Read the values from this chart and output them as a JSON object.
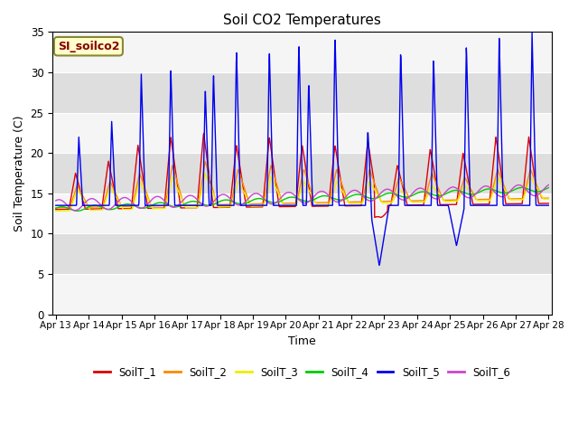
{
  "title": "Soil CO2 Temperatures",
  "xlabel": "Time",
  "ylabel": "Soil Temperature (C)",
  "ylim": [
    0,
    35
  ],
  "annotation": "SI_soilco2",
  "bg_color": "#e8e8e8",
  "series_colors": {
    "SoilT_1": "#dd0000",
    "SoilT_2": "#ff8800",
    "SoilT_3": "#eeee00",
    "SoilT_4": "#00cc00",
    "SoilT_5": "#0000ee",
    "SoilT_6": "#cc44cc"
  },
  "x_tick_labels": [
    "Apr 13",
    "Apr 14",
    "Apr 15",
    "Apr 16",
    "Apr 17",
    "Apr 18",
    "Apr 19",
    "Apr 20",
    "Apr 21",
    "Apr 22",
    "Apr 23",
    "Apr 24",
    "Apr 25",
    "Apr 26",
    "Apr 27",
    "Apr 28"
  ],
  "yticks": [
    0,
    5,
    10,
    15,
    20,
    25,
    30,
    35
  ]
}
